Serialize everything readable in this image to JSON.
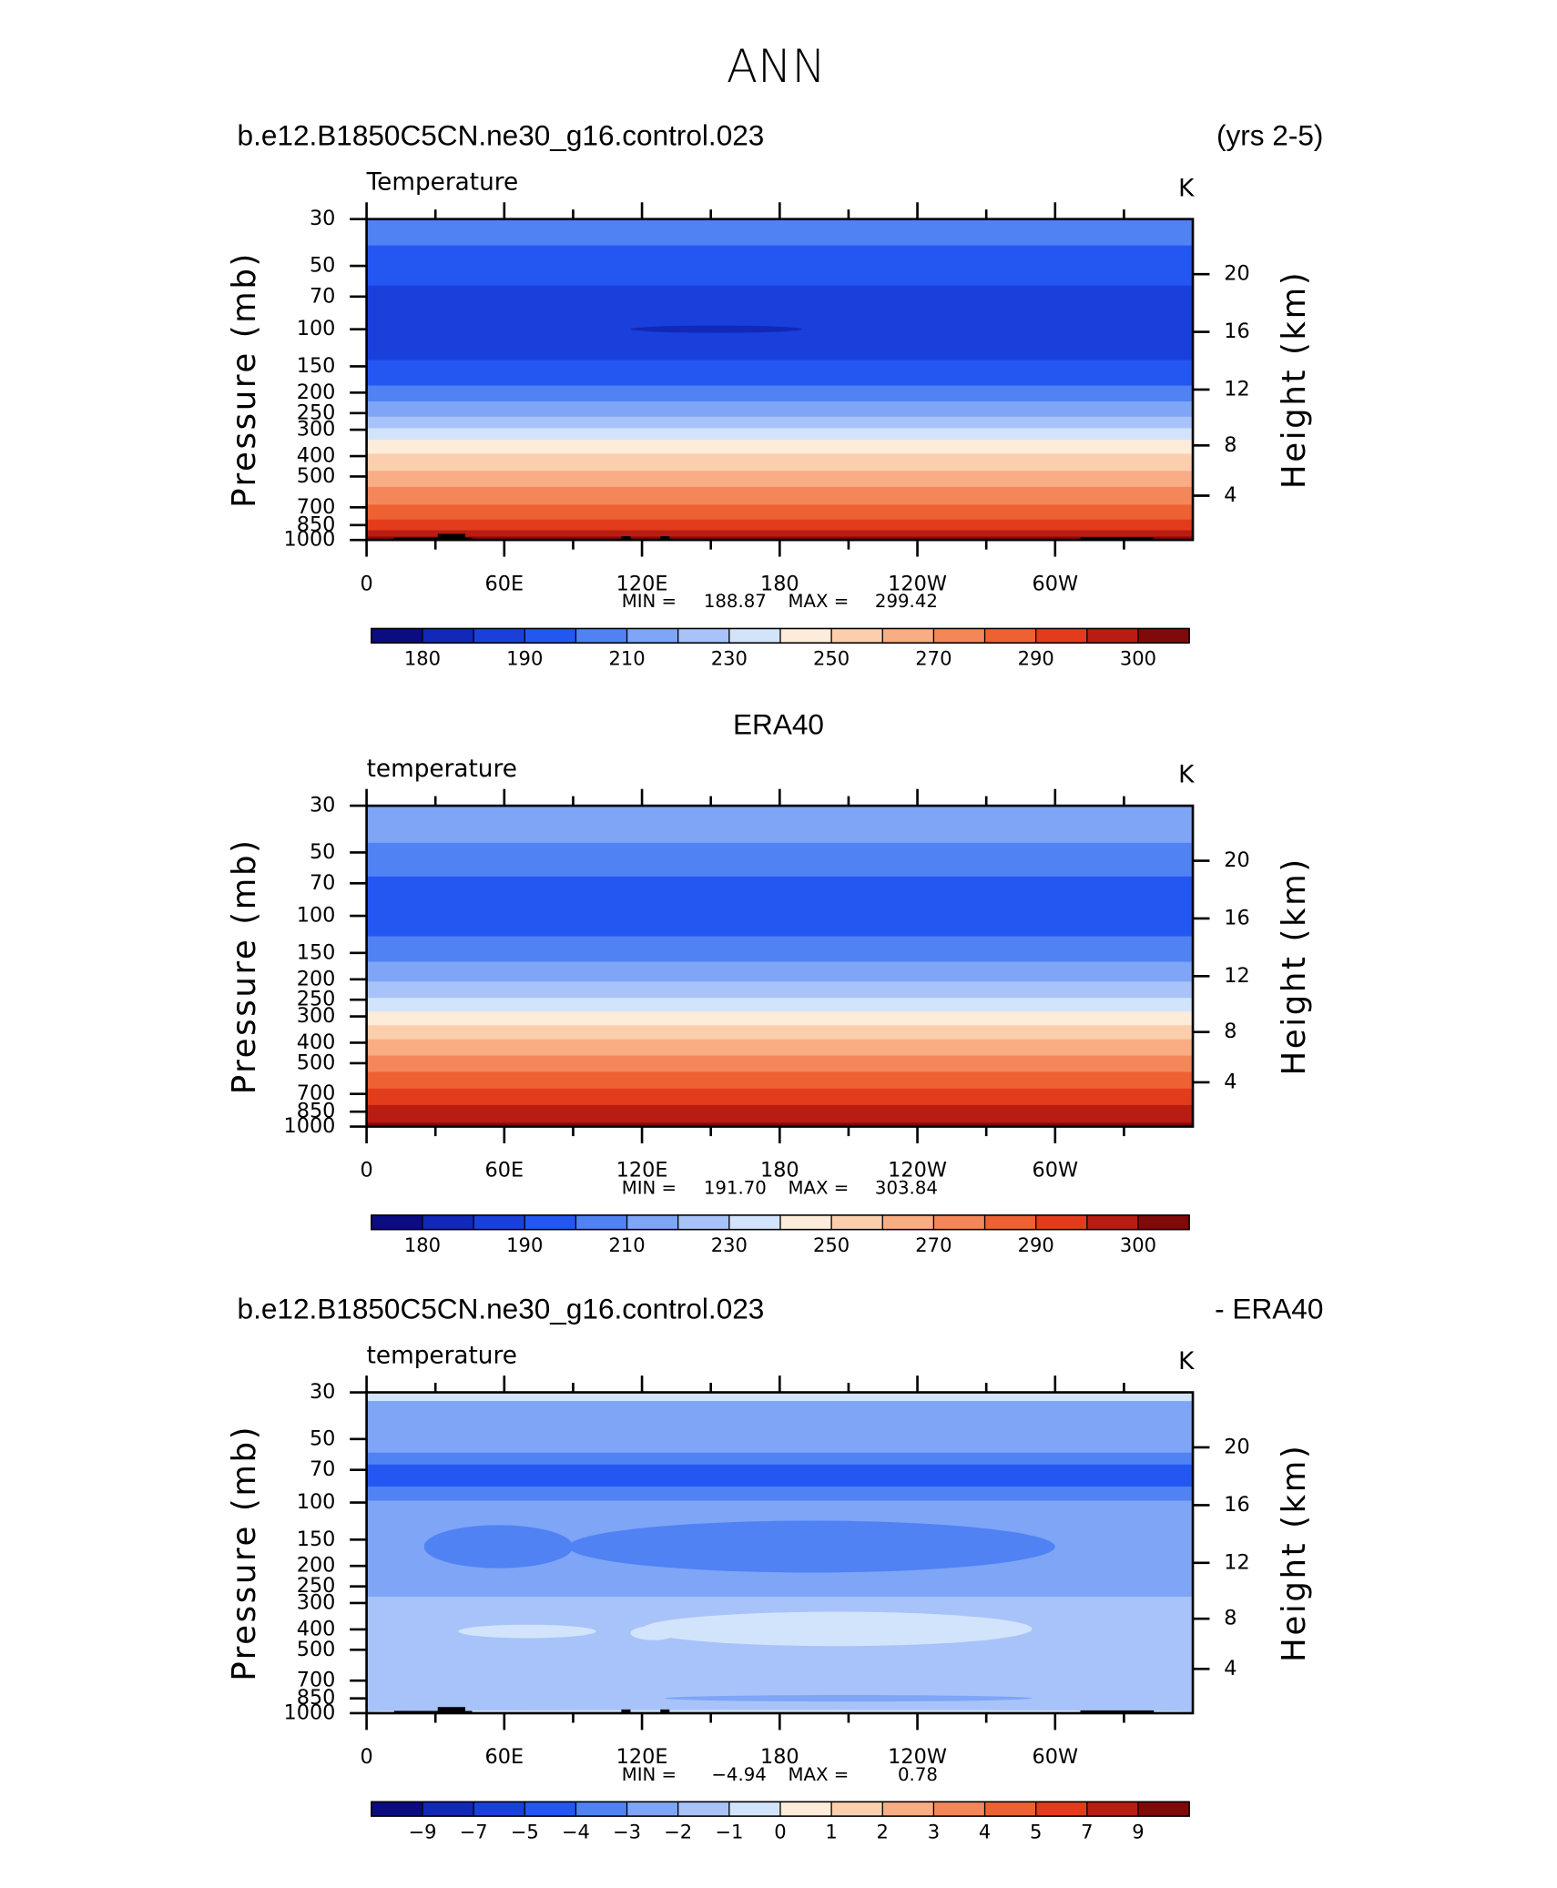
{
  "title": "ANN",
  "chart_data": [
    {
      "type": "contour",
      "title": "b.e12.B1850C5CN.ne30_g16.control.023",
      "title_right": "(yrs 2-5)",
      "subtitle": "Temperature",
      "units": "K",
      "ylabel": "Pressure (mb)",
      "y2label": "Height (km)",
      "log_y": true,
      "ylim": [
        1000,
        30
      ],
      "yticks": [
        30,
        50,
        70,
        100,
        150,
        200,
        250,
        300,
        400,
        500,
        700,
        850,
        1000
      ],
      "y2ticks": [
        20,
        16,
        12,
        8,
        4
      ],
      "xlim": [
        0,
        360
      ],
      "xticks": [
        0,
        {
          "value": 60,
          "label": "60E"
        },
        {
          "value": 120,
          "label": "120E"
        },
        180,
        {
          "value": 240,
          "label": "120W"
        },
        {
          "value": 300,
          "label": "60W"
        }
      ],
      "min_text": "MIN =",
      "min": 188.87,
      "max_text": "MAX =",
      "max": 299.42,
      "colorbar": {
        "colors": [
          "#0a0c80",
          "#1128b8",
          "#1a40dc",
          "#2457f2",
          "#5082f4",
          "#7ea5f6",
          "#a7c3f9",
          "#d2e4fb",
          "#fdecd9",
          "#fbcfae",
          "#f8ad84",
          "#f4875a",
          "#ee6132",
          "#e33c1c",
          "#b81c12",
          "#800a0a"
        ],
        "levels": [
          180,
          null,
          190,
          null,
          210,
          null,
          230,
          null,
          250,
          null,
          270,
          null,
          290,
          null,
          300
        ]
      }
    },
    {
      "type": "contour",
      "title": "ERA40",
      "subtitle": "temperature",
      "units": "K",
      "ylabel": "Pressure (mb)",
      "y2label": "Height (km)",
      "log_y": true,
      "ylim": [
        1000,
        30
      ],
      "yticks": [
        30,
        50,
        70,
        100,
        150,
        200,
        250,
        300,
        400,
        500,
        700,
        850,
        1000
      ],
      "y2ticks": [
        20,
        16,
        12,
        8,
        4
      ],
      "xlim": [
        0,
        360
      ],
      "xticks": [
        0,
        {
          "value": 60,
          "label": "60E"
        },
        {
          "value": 120,
          "label": "120E"
        },
        180,
        {
          "value": 240,
          "label": "120W"
        },
        {
          "value": 300,
          "label": "60W"
        }
      ],
      "min_text": "MIN =",
      "min": {
        "value": 191.7,
        "label": "191.70"
      },
      "max_text": "MAX =",
      "max": 303.84,
      "colorbar": {
        "colors": [
          "#0a0c80",
          "#1128b8",
          "#1a40dc",
          "#2457f2",
          "#5082f4",
          "#7ea5f6",
          "#a7c3f9",
          "#d2e4fb",
          "#fdecd9",
          "#fbcfae",
          "#f8ad84",
          "#f4875a",
          "#ee6132",
          "#e33c1c",
          "#b81c12",
          "#800a0a"
        ],
        "levels": [
          180,
          null,
          190,
          null,
          210,
          null,
          230,
          null,
          250,
          null,
          270,
          null,
          290,
          null,
          300
        ]
      }
    },
    {
      "type": "contour",
      "title": "b.e12.B1850C5CN.ne30_g16.control.023",
      "title_right": "- ERA40",
      "subtitle": "temperature",
      "units": "K",
      "ylabel": "Pressure (mb)",
      "y2label": "Height (km)",
      "log_y": true,
      "ylim": [
        1000,
        30
      ],
      "yticks": [
        30,
        50,
        70,
        100,
        150,
        200,
        250,
        300,
        400,
        500,
        700,
        850,
        1000
      ],
      "y2ticks": [
        20,
        16,
        12,
        8,
        4
      ],
      "xlim": [
        0,
        360
      ],
      "xticks": [
        0,
        {
          "value": 60,
          "label": "60E"
        },
        {
          "value": 120,
          "label": "120E"
        },
        180,
        {
          "value": 240,
          "label": "120W"
        },
        {
          "value": 300,
          "label": "60W"
        }
      ],
      "min_text": "MIN =",
      "min": {
        "value": -4.94,
        "label": "−4.94"
      },
      "max_text": "MAX =",
      "max": 0.78,
      "colorbar": {
        "colors": [
          "#0a0c80",
          "#1128b8",
          "#1a40dc",
          "#2457f2",
          "#5082f4",
          "#7ea5f6",
          "#a7c3f9",
          "#d2e4fb",
          "#fdecd9",
          "#fbcfae",
          "#f8ad84",
          "#f4875a",
          "#ee6132",
          "#e33c1c",
          "#b81c12",
          "#800a0a"
        ],
        "levels": [
          {
            "value": -9,
            "label": "−9"
          },
          {
            "value": -7,
            "label": "−7"
          },
          {
            "value": -5,
            "label": "−5"
          },
          {
            "value": -4,
            "label": "−4"
          },
          {
            "value": -3,
            "label": "−3"
          },
          {
            "value": -2,
            "label": "−2"
          },
          {
            "value": -1,
            "label": "−1"
          },
          0,
          1,
          2,
          3,
          4,
          5,
          7,
          9
        ]
      }
    }
  ]
}
